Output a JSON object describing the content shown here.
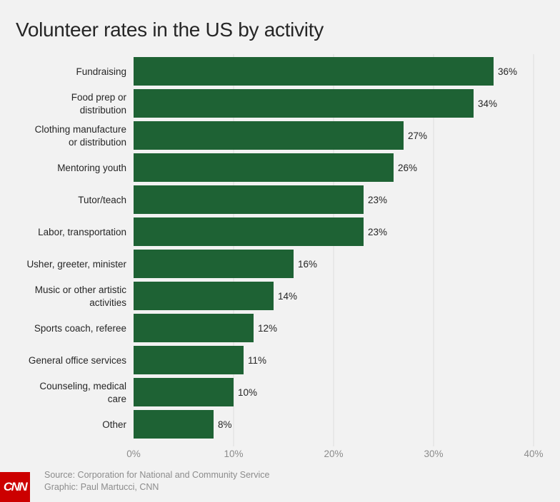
{
  "brand": {
    "logo_text": "CNN",
    "logo_color": "#cc0000",
    "bar_color": "#1e6234"
  },
  "footer": {
    "source": "Source: Corporation for National and Community Service",
    "credit": "Graphic: Paul Martucci, CNN"
  },
  "chart_data": {
    "type": "bar",
    "orientation": "horizontal",
    "title": "Volunteer rates in the US by activity",
    "categories": [
      [
        "Fundraising"
      ],
      [
        "Food prep or",
        "distribution"
      ],
      [
        "Clothing manufacture",
        "or distribution"
      ],
      [
        "Mentoring youth"
      ],
      [
        "Tutor/teach"
      ],
      [
        "Labor, transportation"
      ],
      [
        "Usher, greeter, minister"
      ],
      [
        "Music or other artistic",
        "activities"
      ],
      [
        "Sports coach, referee"
      ],
      [
        "General office services"
      ],
      [
        "Counseling, medical",
        "care"
      ],
      [
        "Other"
      ]
    ],
    "values": [
      36,
      34,
      27,
      26,
      23,
      23,
      16,
      14,
      12,
      11,
      10,
      8
    ],
    "value_labels": [
      "36%",
      "34%",
      "27%",
      "26%",
      "23%",
      "23%",
      "16%",
      "14%",
      "12%",
      "11%",
      "10%",
      "8%"
    ],
    "xlim": [
      0,
      40
    ],
    "xticks": [
      0,
      10,
      20,
      30,
      40
    ],
    "xtick_labels": [
      "0%",
      "10%",
      "20%",
      "30%",
      "40%"
    ],
    "grid": "vertical",
    "legend": "none"
  }
}
